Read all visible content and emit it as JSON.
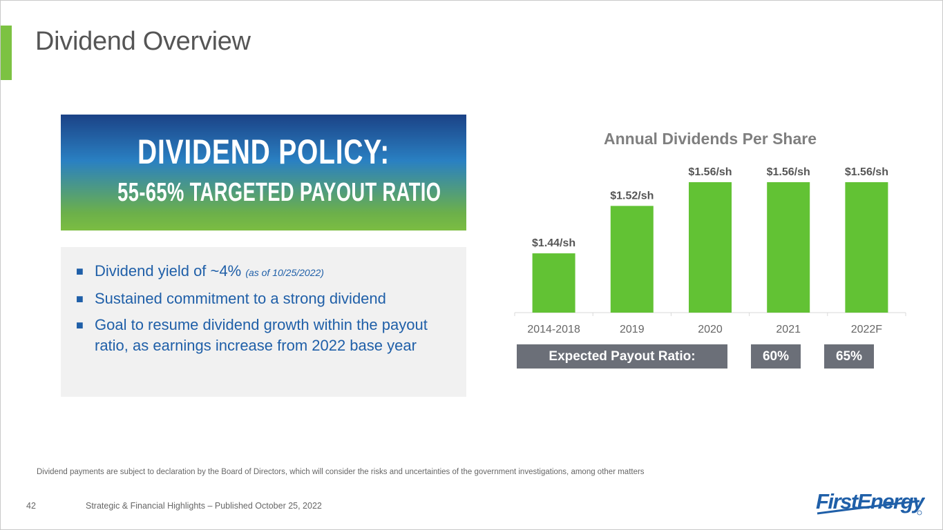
{
  "slide": {
    "title": "Dividend Overview",
    "page_number": "42",
    "footer": "Strategic & Financial Highlights – Published October 25, 2022",
    "footnote": "Dividend payments are subject to declaration by the Board of Directors, which will consider the risks and uncertainties of the government investigations, among other matters",
    "logo_text": "FirstEnergy",
    "accent_color": "#7cc242"
  },
  "policy": {
    "heading": "Dividend Policy:",
    "subheading": "55-65% Targeted Payout Ratio"
  },
  "bullets": [
    {
      "text": "Dividend yield of ~4%",
      "note": "(as of 10/25/2022)"
    },
    {
      "text": "Sustained commitment to a strong dividend",
      "note": ""
    },
    {
      "text": "Goal to resume dividend growth within the payout ratio, as earnings increase from 2022 base year",
      "note": ""
    }
  ],
  "bullet_glyph": "■",
  "chart_data": {
    "type": "bar",
    "title": "Annual Dividends Per Share",
    "categories": [
      "2014-2018",
      "2019",
      "2020",
      "2021",
      "2022F"
    ],
    "values": [
      1.44,
      1.52,
      1.56,
      1.56,
      1.56
    ],
    "data_labels": [
      "$1.44/sh",
      "$1.52/sh",
      "$1.56/sh",
      "$1.56/sh",
      "$1.56/sh"
    ],
    "bar_color": "#62c234",
    "grid": false,
    "legend": "none",
    "ylim": [
      1.34,
      1.56
    ]
  },
  "payout": {
    "label": "Expected Payout Ratio:",
    "values": [
      "60%",
      "65%"
    ],
    "color": "#6b6f78"
  }
}
